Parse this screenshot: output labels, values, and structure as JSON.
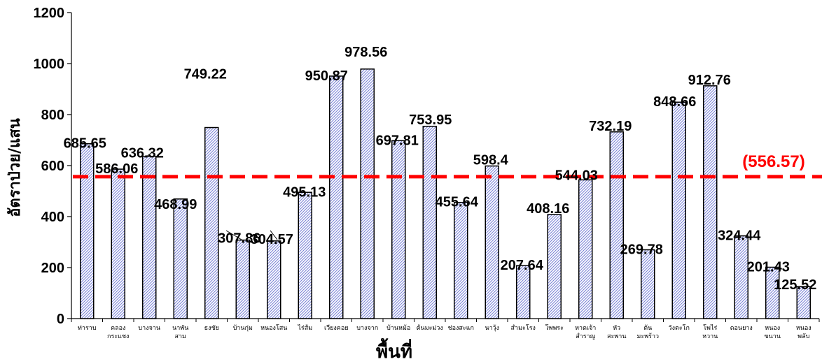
{
  "chart_data": {
    "type": "bar",
    "xlabel": "พื้นที่",
    "ylabel": "อัตราป่วย/แสน",
    "ylim": [
      0,
      1200
    ],
    "yticks": [
      "0",
      "200",
      "400",
      "600",
      "800",
      "1000",
      "1200"
    ],
    "categories": [
      "ท่าราบ",
      "คลอง กระแชง",
      "บางจาน",
      "นาพันสาม",
      "ธงชัย",
      "บ้านกุ่ม",
      "หนองโสน",
      "ไร่ส้ม",
      "เวียงคอย",
      "บางจาก",
      "บ้านหม้อ",
      "ต้นมะม่วง",
      "ช่องสะแก",
      "นาวุ้ง",
      "สำมะโรง",
      "โพพระ",
      "หาดเจ้า สำราญ",
      "หัว สะพาน",
      "ต้น มะพร้าว",
      "วังตะโก",
      "โพไร่ หวาน",
      "ดอนยาง",
      "หนอง ขนาน",
      "หนอง พลับ"
    ],
    "category_lines": [
      [
        "ท่าราบ"
      ],
      [
        "คลอง",
        "กระแชง"
      ],
      [
        "บางจาน"
      ],
      [
        "นาพัน",
        "สาม"
      ],
      [
        "ธงชัย"
      ],
      [
        "บ้านกุ่ม"
      ],
      [
        "หนองโสน"
      ],
      [
        "ไร่ส้ม"
      ],
      [
        "เวียงคอย"
      ],
      [
        "บางจาก"
      ],
      [
        "บ้านหม้อ"
      ],
      [
        "ต้นมะม่วง"
      ],
      [
        "ช่องสะแก"
      ],
      [
        "นาวุ้ง"
      ],
      [
        "สำมะโรง"
      ],
      [
        "โพพระ"
      ],
      [
        "หาดเจ้า",
        "สำราญ"
      ],
      [
        "หัว",
        "สะพาน"
      ],
      [
        "ต้น",
        "มะพร้าว"
      ],
      [
        "วังตะโก"
      ],
      [
        "โพไร่",
        "หวาน"
      ],
      [
        "ดอนยาง"
      ],
      [
        "หนอง",
        "ขนาน"
      ],
      [
        "หนอง",
        "พลับ"
      ]
    ],
    "values": [
      685.65,
      586.06,
      636.32,
      468.99,
      749.22,
      307.86,
      304.57,
      495.13,
      950.87,
      978.56,
      697.81,
      753.95,
      455.64,
      598.4,
      207.64,
      408.16,
      544.03,
      732.19,
      269.78,
      848.66,
      912.76,
      324.44,
      201.43,
      125.52
    ],
    "data_labels": [
      "685.65",
      "586.06",
      "636.32",
      "468.99",
      "749.22",
      "307.86",
      "304.57",
      "495.13",
      "950.87",
      "978.56",
      "697.81",
      "753.95",
      "455.64",
      "598.4",
      "207.64",
      "408.16",
      "544.03",
      "732.19",
      "269.78",
      "848.66",
      "912.76",
      "324.44",
      "201.43",
      "125.52"
    ],
    "reference_line": {
      "value": 556.57,
      "label": "(556.57)",
      "color": "#ff0000",
      "style": "dashed"
    },
    "bar_fill": "hatched-blue",
    "bar_edge_color": "#000000",
    "grid": false,
    "legend": "none"
  }
}
